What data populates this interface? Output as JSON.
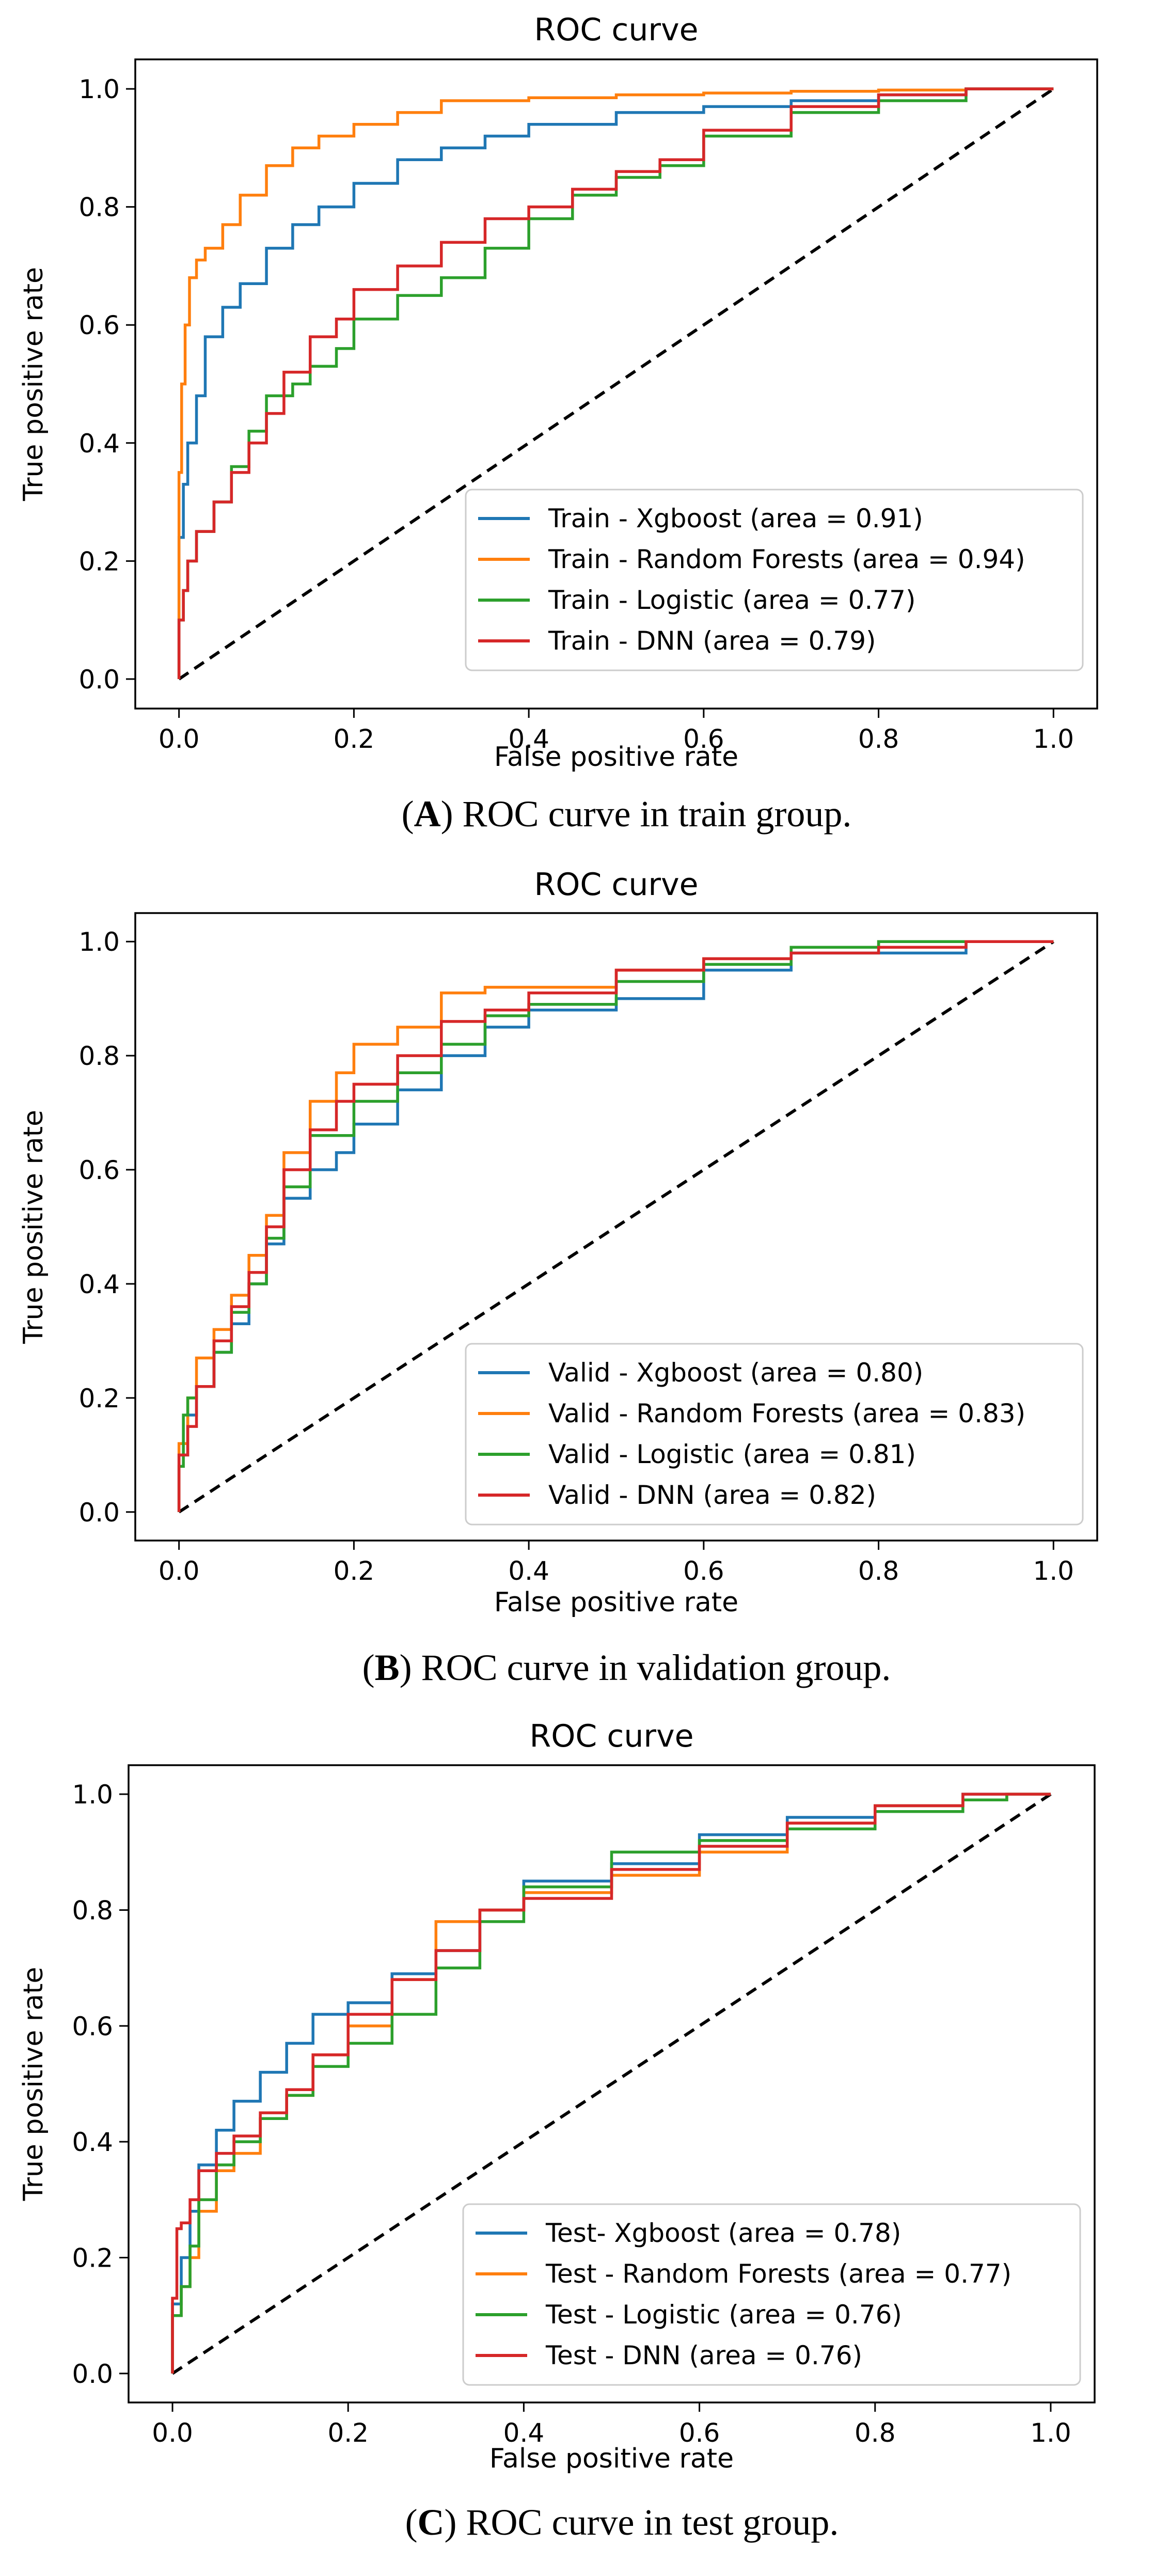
{
  "colors": {
    "xgboost": "#1f77b4",
    "random_forests": "#ff7f0e",
    "logistic": "#2ca02c",
    "dnn": "#d62728",
    "diagonal": "#000000"
  },
  "chart_data": [
    {
      "type": "line",
      "title": "ROC curve",
      "xlabel": "False positive rate",
      "ylabel": "True positive rate",
      "xlim": [
        -0.05,
        1.05
      ],
      "ylim": [
        -0.05,
        1.05
      ],
      "xticks": [
        "0.0",
        "0.2",
        "0.4",
        "0.6",
        "0.8",
        "1.0"
      ],
      "yticks": [
        "0.0",
        "0.2",
        "0.4",
        "0.6",
        "0.8",
        "1.0"
      ],
      "legend_position": "lower-right",
      "caption": {
        "open": "(",
        "letter": "A",
        "rest": ") ROC curve in train group."
      },
      "series": [
        {
          "name": "Train - Xgboost (area = 0.91)",
          "color_key": "xgboost",
          "x": [
            0,
            0.005,
            0.01,
            0.02,
            0.03,
            0.05,
            0.07,
            0.1,
            0.13,
            0.16,
            0.2,
            0.25,
            0.3,
            0.35,
            0.4,
            0.5,
            0.6,
            0.7,
            0.8,
            0.9,
            1.0
          ],
          "y": [
            0,
            0.24,
            0.33,
            0.4,
            0.48,
            0.58,
            0.63,
            0.67,
            0.73,
            0.77,
            0.8,
            0.84,
            0.88,
            0.9,
            0.92,
            0.94,
            0.96,
            0.97,
            0.98,
            0.99,
            1.0
          ]
        },
        {
          "name": "Train - Random Forests (area = 0.94)",
          "color_key": "random_forests",
          "x": [
            0,
            0.003,
            0.007,
            0.012,
            0.02,
            0.03,
            0.05,
            0.07,
            0.1,
            0.13,
            0.16,
            0.2,
            0.25,
            0.3,
            0.4,
            0.5,
            0.6,
            0.7,
            0.8,
            0.9,
            1.0
          ],
          "y": [
            0,
            0.35,
            0.5,
            0.6,
            0.68,
            0.71,
            0.73,
            0.77,
            0.82,
            0.87,
            0.9,
            0.92,
            0.94,
            0.96,
            0.98,
            0.985,
            0.99,
            0.993,
            0.996,
            0.998,
            1.0
          ]
        },
        {
          "name": "Train - Logistic (area = 0.77)",
          "color_key": "logistic",
          "x": [
            0,
            0.005,
            0.01,
            0.02,
            0.04,
            0.06,
            0.08,
            0.1,
            0.13,
            0.15,
            0.18,
            0.2,
            0.25,
            0.3,
            0.35,
            0.4,
            0.45,
            0.5,
            0.55,
            0.6,
            0.7,
            0.8,
            0.9,
            1.0
          ],
          "y": [
            0,
            0.1,
            0.15,
            0.2,
            0.25,
            0.3,
            0.36,
            0.42,
            0.48,
            0.5,
            0.53,
            0.56,
            0.61,
            0.65,
            0.68,
            0.73,
            0.78,
            0.82,
            0.85,
            0.87,
            0.92,
            0.96,
            0.98,
            1.0
          ]
        },
        {
          "name": "Train - DNN (area = 0.79)",
          "color_key": "dnn",
          "x": [
            0,
            0.005,
            0.01,
            0.02,
            0.04,
            0.06,
            0.08,
            0.1,
            0.12,
            0.15,
            0.18,
            0.2,
            0.25,
            0.3,
            0.35,
            0.4,
            0.45,
            0.5,
            0.55,
            0.6,
            0.7,
            0.8,
            0.9,
            1.0
          ],
          "y": [
            0,
            0.1,
            0.15,
            0.2,
            0.25,
            0.3,
            0.35,
            0.4,
            0.45,
            0.52,
            0.58,
            0.61,
            0.66,
            0.7,
            0.74,
            0.78,
            0.8,
            0.83,
            0.86,
            0.88,
            0.93,
            0.97,
            0.99,
            1.0
          ]
        }
      ]
    },
    {
      "type": "line",
      "title": "ROC curve",
      "xlabel": "False positive rate",
      "ylabel": "True positive rate",
      "xlim": [
        -0.05,
        1.05
      ],
      "ylim": [
        -0.05,
        1.05
      ],
      "xticks": [
        "0.0",
        "0.2",
        "0.4",
        "0.6",
        "0.8",
        "1.0"
      ],
      "yticks": [
        "0.0",
        "0.2",
        "0.4",
        "0.6",
        "0.8",
        "1.0"
      ],
      "legend_position": "lower-right",
      "caption": {
        "open": "(",
        "letter": "B",
        "rest": ") ROC curve in validation group."
      },
      "series": [
        {
          "name": "Valid - Xgboost (area = 0.80)",
          "color_key": "xgboost",
          "x": [
            0,
            0.01,
            0.02,
            0.04,
            0.06,
            0.08,
            0.1,
            0.12,
            0.15,
            0.18,
            0.2,
            0.25,
            0.3,
            0.35,
            0.4,
            0.5,
            0.6,
            0.7,
            0.8,
            0.9,
            1.0
          ],
          "y": [
            0,
            0.1,
            0.17,
            0.22,
            0.28,
            0.33,
            0.4,
            0.47,
            0.55,
            0.6,
            0.63,
            0.68,
            0.74,
            0.8,
            0.85,
            0.88,
            0.9,
            0.95,
            0.98,
            0.98,
            1.0
          ]
        },
        {
          "name": "Valid - Random Forests (area = 0.83)",
          "color_key": "random_forests",
          "x": [
            0,
            0.01,
            0.02,
            0.04,
            0.06,
            0.08,
            0.1,
            0.12,
            0.15,
            0.18,
            0.2,
            0.25,
            0.3,
            0.35,
            0.4,
            0.5,
            0.6,
            0.7,
            0.8,
            0.9,
            1.0
          ],
          "y": [
            0,
            0.12,
            0.2,
            0.27,
            0.32,
            0.38,
            0.45,
            0.52,
            0.63,
            0.72,
            0.77,
            0.82,
            0.85,
            0.91,
            0.92,
            0.92,
            0.95,
            0.97,
            0.99,
            1.0,
            1.0
          ]
        },
        {
          "name": "Valid - Logistic (area = 0.81)",
          "color_key": "logistic",
          "x": [
            0,
            0.005,
            0.01,
            0.02,
            0.04,
            0.06,
            0.08,
            0.1,
            0.12,
            0.15,
            0.2,
            0.25,
            0.3,
            0.35,
            0.4,
            0.5,
            0.6,
            0.7,
            0.8,
            0.9,
            1.0
          ],
          "y": [
            0,
            0.08,
            0.17,
            0.2,
            0.22,
            0.28,
            0.35,
            0.4,
            0.48,
            0.57,
            0.66,
            0.72,
            0.77,
            0.82,
            0.87,
            0.89,
            0.93,
            0.96,
            0.99,
            1.0,
            1.0
          ]
        },
        {
          "name": "Valid - DNN (area = 0.82)",
          "color_key": "dnn",
          "x": [
            0,
            0.01,
            0.02,
            0.04,
            0.06,
            0.08,
            0.1,
            0.12,
            0.15,
            0.18,
            0.2,
            0.25,
            0.3,
            0.35,
            0.4,
            0.5,
            0.6,
            0.7,
            0.8,
            0.9,
            1.0
          ],
          "y": [
            0,
            0.1,
            0.15,
            0.22,
            0.3,
            0.36,
            0.42,
            0.5,
            0.6,
            0.67,
            0.72,
            0.75,
            0.8,
            0.86,
            0.88,
            0.91,
            0.95,
            0.97,
            0.98,
            0.99,
            1.0
          ]
        }
      ]
    },
    {
      "type": "line",
      "title": "ROC curve",
      "xlabel": "False positive rate",
      "ylabel": "True positive rate",
      "xlim": [
        -0.05,
        1.05
      ],
      "ylim": [
        -0.05,
        1.05
      ],
      "xticks": [
        "0.0",
        "0.2",
        "0.4",
        "0.6",
        "0.8",
        "1.0"
      ],
      "yticks": [
        "0.0",
        "0.2",
        "0.4",
        "0.6",
        "0.8",
        "1.0"
      ],
      "legend_position": "lower-right",
      "caption": {
        "open": "(",
        "letter": "C",
        "rest": ") ROC curve in test group."
      },
      "series": [
        {
          "name": "Test- Xgboost (area = 0.78)",
          "color_key": "xgboost",
          "x": [
            0,
            0.01,
            0.02,
            0.03,
            0.05,
            0.07,
            0.1,
            0.13,
            0.16,
            0.2,
            0.25,
            0.3,
            0.35,
            0.4,
            0.5,
            0.6,
            0.7,
            0.8,
            0.9,
            0.95,
            1.0
          ],
          "y": [
            0,
            0.12,
            0.2,
            0.28,
            0.36,
            0.42,
            0.47,
            0.52,
            0.57,
            0.62,
            0.64,
            0.69,
            0.73,
            0.8,
            0.85,
            0.88,
            0.93,
            0.96,
            0.98,
            1.0,
            1.0
          ]
        },
        {
          "name": "Test - Random Forests (area = 0.77)",
          "color_key": "random_forests",
          "x": [
            0,
            0.01,
            0.02,
            0.03,
            0.05,
            0.07,
            0.1,
            0.13,
            0.16,
            0.2,
            0.25,
            0.3,
            0.35,
            0.4,
            0.5,
            0.6,
            0.7,
            0.8,
            0.9,
            0.95,
            1.0
          ],
          "y": [
            0,
            0.1,
            0.15,
            0.2,
            0.28,
            0.35,
            0.38,
            0.44,
            0.48,
            0.55,
            0.6,
            0.68,
            0.78,
            0.8,
            0.83,
            0.86,
            0.9,
            0.95,
            0.98,
            0.99,
            1.0
          ]
        },
        {
          "name": "Test - Logistic (area = 0.76)",
          "color_key": "logistic",
          "x": [
            0,
            0.01,
            0.02,
            0.03,
            0.05,
            0.07,
            0.1,
            0.13,
            0.16,
            0.2,
            0.25,
            0.3,
            0.35,
            0.4,
            0.5,
            0.6,
            0.7,
            0.8,
            0.9,
            0.95,
            1.0
          ],
          "y": [
            0,
            0.1,
            0.15,
            0.22,
            0.3,
            0.36,
            0.4,
            0.44,
            0.48,
            0.53,
            0.57,
            0.62,
            0.7,
            0.78,
            0.84,
            0.9,
            0.92,
            0.94,
            0.97,
            0.99,
            1.0
          ]
        },
        {
          "name": "Test - DNN (area = 0.76)",
          "color_key": "dnn",
          "x": [
            0,
            0.005,
            0.01,
            0.02,
            0.03,
            0.05,
            0.07,
            0.1,
            0.13,
            0.16,
            0.2,
            0.25,
            0.3,
            0.35,
            0.4,
            0.5,
            0.6,
            0.7,
            0.8,
            0.9,
            1.0
          ],
          "y": [
            0,
            0.13,
            0.25,
            0.26,
            0.3,
            0.35,
            0.38,
            0.41,
            0.45,
            0.49,
            0.55,
            0.62,
            0.68,
            0.73,
            0.8,
            0.82,
            0.87,
            0.91,
            0.95,
            0.98,
            1.0
          ]
        }
      ]
    }
  ]
}
